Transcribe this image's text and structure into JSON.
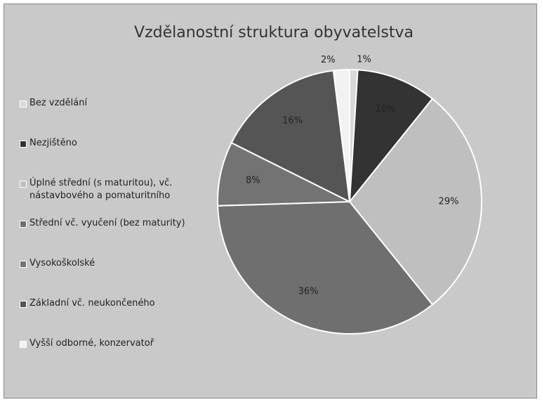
{
  "chart_data": {
    "type": "pie",
    "title": "Vzdělanostní struktura obyvatelstva",
    "categories": [
      "Bez vzdělání",
      "Nezjištěno",
      "Úplné  střední (s maturitou), vč. nástavbového a pomaturitního",
      "Střední vč. vyučení (bez maturity)",
      "Vysokoškolské",
      "Základní vč. neukončeného",
      "Vyšší odborné, konzervatoř"
    ],
    "values": [
      1,
      10,
      29,
      36,
      8,
      16,
      2
    ],
    "value_labels": [
      "1%",
      "10%",
      "29%",
      "36%",
      "8%",
      "16%",
      "2%"
    ],
    "colors": [
      "#d9d9d9",
      "#333333",
      "#bfbfbf",
      "#6f6f6f",
      "#737373",
      "#555555",
      "#f2f2f2"
    ],
    "legend": "left"
  }
}
